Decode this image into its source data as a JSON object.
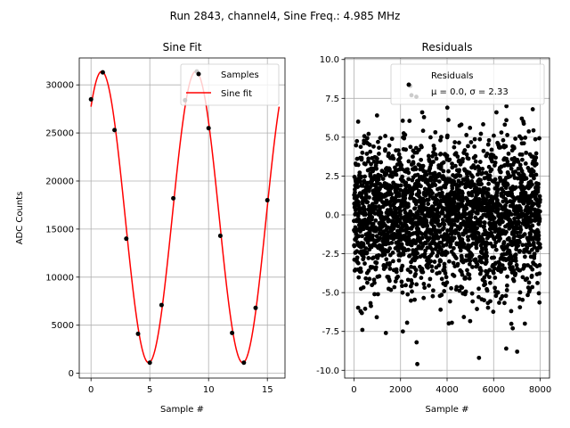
{
  "figure": {
    "suptitle": "Run 2843, channel4, Sine Freq.: 4.985 MHz"
  },
  "colors": {
    "fit_line": "#ff0000",
    "markers": "#000000",
    "grid": "#b0b0b0"
  },
  "chart_data": [
    {
      "type": "scatter",
      "title": "Sine Fit",
      "xlabel": "Sample #",
      "ylabel": "ADC Counts",
      "xlim": [
        -1,
        16.5
      ],
      "ylim": [
        -500,
        32800
      ],
      "xticks": [
        0,
        5,
        10,
        15
      ],
      "yticks": [
        0,
        5000,
        10000,
        15000,
        20000,
        25000,
        30000
      ],
      "grid": true,
      "legend_position": "top-right",
      "series": [
        {
          "name": "Samples",
          "kind": "points",
          "x": [
            0,
            1,
            2,
            3,
            4,
            5,
            6,
            7,
            8,
            9,
            10,
            11,
            12,
            13,
            14,
            15
          ],
          "y": [
            28500,
            31300,
            25300,
            14000,
            4100,
            1100,
            7100,
            18200,
            28400,
            31400,
            25500,
            14300,
            4200,
            1100,
            6800,
            18000
          ]
        },
        {
          "name": "Sine fit",
          "kind": "line",
          "model": {
            "offset": 16250,
            "amplitude": 15150,
            "period": 8.0,
            "phase_sample": 0.905
          },
          "x_range": [
            0,
            16
          ]
        }
      ]
    },
    {
      "type": "scatter",
      "title": "Residuals",
      "xlabel": "Sample #",
      "xlim": [
        -400,
        8400
      ],
      "ylim": [
        -10.5,
        10.1
      ],
      "xticks": [
        0,
        2000,
        4000,
        6000,
        8000
      ],
      "yticks": [
        -10.0,
        -7.5,
        -5.0,
        -2.5,
        0.0,
        2.5,
        5.0,
        7.5,
        10.0
      ],
      "grid": true,
      "legend_position": "top-right",
      "series": [
        {
          "name": "Residuals",
          "legend_line2": "μ = 0.0, σ = 2.33",
          "kind": "points",
          "count": 8000,
          "mean": 0.0,
          "std": 2.33,
          "outliers": [
            {
              "x": 2720,
              "y": -9.6
            },
            {
              "x": 5370,
              "y": -9.2
            },
            {
              "x": 7010,
              "y": -8.8
            },
            {
              "x": 6540,
              "y": -8.6
            },
            {
              "x": 2690,
              "y": -8.2
            },
            {
              "x": 2420,
              "y": 8.3
            },
            {
              "x": 2470,
              "y": 7.7
            },
            {
              "x": 2680,
              "y": 7.6
            },
            {
              "x": 6550,
              "y": 7.0
            },
            {
              "x": 4010,
              "y": 6.9
            },
            {
              "x": 2930,
              "y": 6.6
            },
            {
              "x": 6120,
              "y": 6.6
            },
            {
              "x": 7680,
              "y": 6.8
            },
            {
              "x": 990,
              "y": 6.4
            },
            {
              "x": 180,
              "y": 6.0
            },
            {
              "x": 7210,
              "y": 6.2
            },
            {
              "x": 360,
              "y": -7.4
            },
            {
              "x": 1370,
              "y": -7.6
            },
            {
              "x": 2100,
              "y": -7.5
            },
            {
              "x": 6820,
              "y": -7.3
            }
          ]
        }
      ]
    }
  ]
}
